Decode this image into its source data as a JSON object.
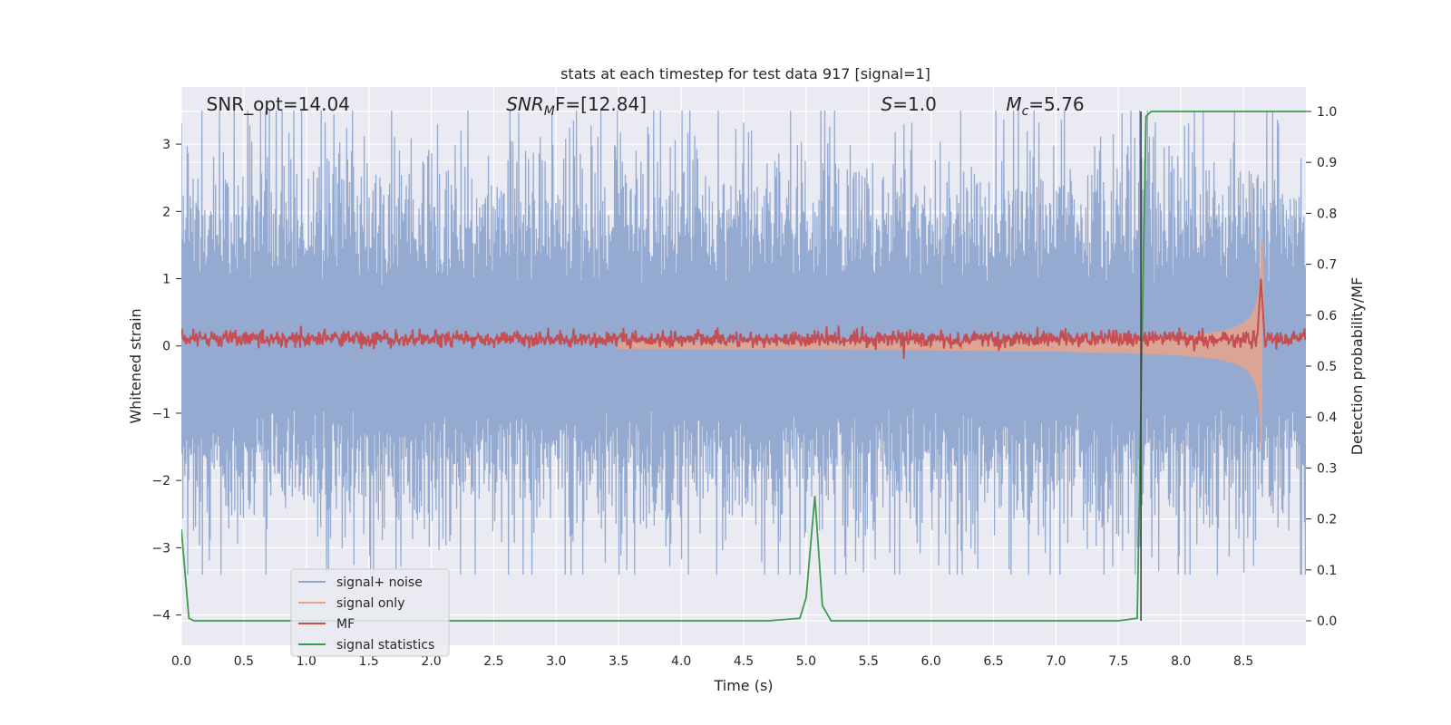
{
  "chart_data": {
    "type": "line",
    "title": "stats at each timestep for test data 917 [signal=1]",
    "xlabel": "Time (s)",
    "ylabel": "Whitened strain",
    "y2label": "Detection probability/MF",
    "xlim": [
      0.0,
      9.0
    ],
    "ylim": [
      -4.45,
      3.85
    ],
    "y2lim": [
      -0.048,
      1.048
    ],
    "xticks": [
      "0.0",
      "0.5",
      "1.0",
      "1.5",
      "2.0",
      "2.5",
      "3.0",
      "3.5",
      "4.0",
      "4.5",
      "5.0",
      "5.5",
      "6.0",
      "6.5",
      "7.0",
      "7.5",
      "8.0",
      "8.5"
    ],
    "yticks": [
      "−4",
      "−3",
      "−2",
      "−1",
      "0",
      "1",
      "2",
      "3"
    ],
    "y2ticks": [
      "0.0",
      "0.1",
      "0.2",
      "0.3",
      "0.4",
      "0.5",
      "0.6",
      "0.7",
      "0.8",
      "0.9",
      "1.0"
    ],
    "grid": true,
    "legend_position": "lower-left",
    "annotations": [
      {
        "text": "SNR_opt=14.04",
        "x": 0.2
      },
      {
        "base": "SNR",
        "sub": "M",
        "rest": "F=[12.84]",
        "x": 2.6
      },
      {
        "base": "S",
        "sub": "",
        "rest": "=1.0",
        "x": 5.6
      },
      {
        "base": "M",
        "sub": "c",
        "rest": "=5.76",
        "x": 6.6
      }
    ],
    "vertical_line_x": 7.68,
    "series": [
      {
        "name": "signal+ noise",
        "color": "#8fa6cf",
        "axis": "left",
        "kind": "noise",
        "amplitude_range": [
          -3.4,
          3.5
        ]
      },
      {
        "name": "signal only",
        "color": "#e6a48b",
        "axis": "left",
        "kind": "chirp",
        "end_x": 8.65,
        "peak": 1.6
      },
      {
        "name": "MF",
        "color": "#c44e52",
        "axis": "left",
        "kind": "mf",
        "baseline": 0.1,
        "peak_x": 8.64,
        "peak": 1.0
      },
      {
        "name": "signal statistics",
        "color": "#3d9b4f",
        "axis": "right",
        "x": [
          0.0,
          0.06,
          0.1,
          0.15,
          0.5,
          1.0,
          2.0,
          3.0,
          4.0,
          4.7,
          4.95,
          5.0,
          5.07,
          5.13,
          5.2,
          5.5,
          6.0,
          7.0,
          7.5,
          7.65,
          7.72,
          7.76,
          7.8,
          8.0,
          8.5,
          9.0
        ],
        "y": [
          0.18,
          0.005,
          0.0,
          0.0,
          0.0,
          0.0,
          0.0,
          0.0,
          0.0,
          0.0,
          0.005,
          0.045,
          0.245,
          0.03,
          0.0,
          0.0,
          0.0,
          0.0,
          0.0,
          0.005,
          0.99,
          1.0,
          1.0,
          1.0,
          1.0,
          1.0
        ]
      }
    ]
  }
}
